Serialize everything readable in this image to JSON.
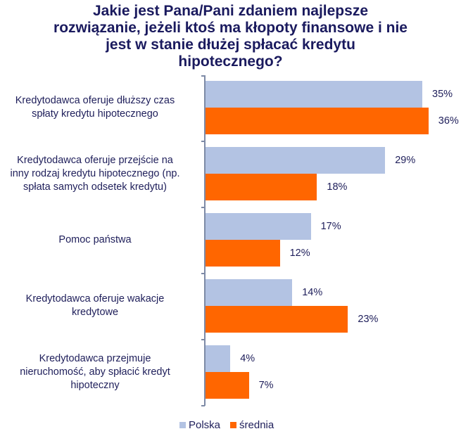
{
  "chart_data": {
    "type": "bar",
    "orientation": "horizontal",
    "title": "Jakie jest Pana/Pani zdaniem najlepsze rozwiązanie, jeżeli ktoś ma kłopoty finansowe i nie jest w stanie dłużej spłacać kredytu hipotecznego?",
    "title_lines": [
      "Jakie jest Pana/Pani zdaniem najlepsze",
      "rozwiązanie, jeżeli ktoś ma kłopoty finansowe i nie",
      "jest w stanie dłużej spłacać kredytu",
      "hipotecznego?"
    ],
    "categories": [
      "Kredytodawca oferuje dłuższy czas spłaty kredytu hipotecznego",
      "Kredytodawca oferuje przejście na inny rodzaj kredytu hipotecznego (np. spłata samych odsetek kredytu)",
      "Pomoc państwa",
      "Kredytodawca oferuje wakacje kredytowe",
      "Kredytodawca przejmuje nieruchomość, aby spłacić kredyt hipoteczny"
    ],
    "category_lines": [
      [
        "Kredytodawca oferuje dłuższy czas",
        "spłaty kredytu hipotecznego"
      ],
      [
        "Kredytodawca oferuje przejście na",
        "inny rodzaj kredytu hipotecznego (np.",
        "spłata samych odsetek kredytu)"
      ],
      [
        "Pomoc państwa"
      ],
      [
        "Kredytodawca oferuje wakacje",
        "kredytowe"
      ],
      [
        "Kredytodawca przejmuje",
        "nieruchomość, aby spłacić kredyt",
        "hipoteczny"
      ]
    ],
    "series": [
      {
        "name": "Polska",
        "color": "#b3c3e3",
        "values": [
          35,
          29,
          17,
          14,
          4
        ],
        "labels": [
          "35%",
          "29%",
          "17%",
          "14%",
          "4%"
        ]
      },
      {
        "name": "średnia",
        "color": "#ff6600",
        "values": [
          36,
          18,
          12,
          23,
          7
        ],
        "labels": [
          "36%",
          "18%",
          "12%",
          "23%",
          "7%"
        ]
      }
    ],
    "xlabel": "",
    "ylabel": "",
    "unit": "%",
    "grid": false,
    "legend_position": "bottom"
  },
  "legend": {
    "items": [
      {
        "label": "Polska",
        "color": "#b3c3e3"
      },
      {
        "label": "średnia",
        "color": "#ff6600"
      }
    ]
  }
}
